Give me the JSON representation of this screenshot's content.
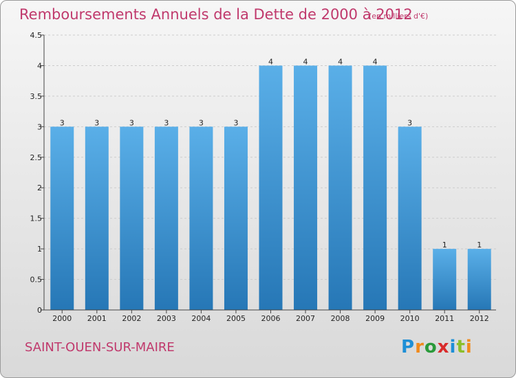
{
  "title": "Remboursements Annuels de la Dette de 2000 à 2012",
  "subtitle": "(en milliers d'€)",
  "commune": "SAINT-OUEN-SUR-MAIRE",
  "logo": {
    "text": "Proxiti",
    "letters": [
      {
        "ch": "P",
        "color": "#1e8fd6"
      },
      {
        "ch": "r",
        "color": "#f08a1c"
      },
      {
        "ch": "o",
        "color": "#2a9a3a"
      },
      {
        "ch": "x",
        "color": "#d92b2b"
      },
      {
        "ch": "i",
        "color": "#1e8fd6"
      },
      {
        "ch": "t",
        "color": "#8bbf2a"
      },
      {
        "ch": "i",
        "color": "#f08a1c"
      }
    ]
  },
  "colors": {
    "title": "#c0396c",
    "bar_top": "#5aafe8",
    "bar_bottom": "#2677b6",
    "grid": "#cccccc"
  },
  "chart_data": {
    "type": "bar",
    "title": "Remboursements Annuels de la Dette de 2000 à 2012",
    "subtitle": "(en milliers d'€)",
    "categories": [
      "2000",
      "2001",
      "2002",
      "2003",
      "2004",
      "2005",
      "2006",
      "2007",
      "2008",
      "2009",
      "2010",
      "2011",
      "2012"
    ],
    "values": [
      3,
      3,
      3,
      3,
      3,
      3,
      4,
      4,
      4,
      4,
      3,
      1,
      1
    ],
    "data_labels": [
      "3",
      "3",
      "3",
      "3",
      "3",
      "3",
      "4",
      "4",
      "4",
      "4",
      "3",
      "1",
      "1"
    ],
    "ylim": [
      0,
      4.5
    ],
    "yticks": [
      0,
      0.5,
      1,
      1.5,
      2,
      2.5,
      3,
      3.5,
      4,
      4.5
    ],
    "ytick_labels": [
      "0",
      "0.5",
      "1",
      "1.5",
      "2",
      "2.5",
      "3",
      "3.5",
      "4",
      "4.5"
    ],
    "grid": true,
    "xlabel": "",
    "ylabel": ""
  }
}
